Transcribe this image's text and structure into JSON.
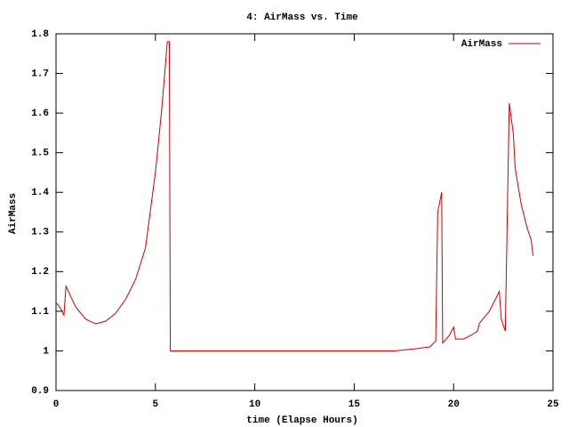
{
  "chart_data": {
    "type": "line",
    "title": "4: AirMass vs. Time",
    "x_label": "time (Elapse Hours)",
    "y_label": "AirMass",
    "x": [
      0,
      0.2,
      0.4,
      0.5,
      1,
      1.5,
      2,
      2.5,
      3,
      3.5,
      4,
      4.5,
      5,
      5.3,
      5.6,
      5.7,
      5.75,
      10,
      17,
      18,
      18.8,
      19.1,
      19.2,
      19.4,
      19.45,
      19.8,
      20,
      20.1,
      20.5,
      20.9,
      21.2,
      21.3,
      21.8,
      22.3,
      22.4,
      22.6,
      22.8,
      23.0,
      23.1,
      23.4,
      23.7,
      23.9,
      24.0
    ],
    "series": [
      {
        "name": "AirMass",
        "color": "#cc0000",
        "values": [
          1.122,
          1.11,
          1.09,
          1.163,
          1.11,
          1.08,
          1.068,
          1.075,
          1.095,
          1.13,
          1.18,
          1.26,
          1.45,
          1.6,
          1.78,
          1.78,
          1.0,
          1.0,
          1.0,
          1.005,
          1.01,
          1.025,
          1.35,
          1.4,
          1.02,
          1.04,
          1.06,
          1.03,
          1.03,
          1.04,
          1.05,
          1.07,
          1.1,
          1.15,
          1.08,
          1.05,
          1.625,
          1.55,
          1.46,
          1.37,
          1.31,
          1.28,
          1.24
        ]
      }
    ],
    "xlim": [
      0,
      25
    ],
    "xticks": [
      0,
      5,
      10,
      15,
      20,
      25
    ],
    "ylim": [
      0.9,
      1.8
    ],
    "yticks": [
      0.9,
      1,
      1.1,
      1.2,
      1.3,
      1.4,
      1.5,
      1.6,
      1.7,
      1.8
    ],
    "legend": "top-right"
  }
}
